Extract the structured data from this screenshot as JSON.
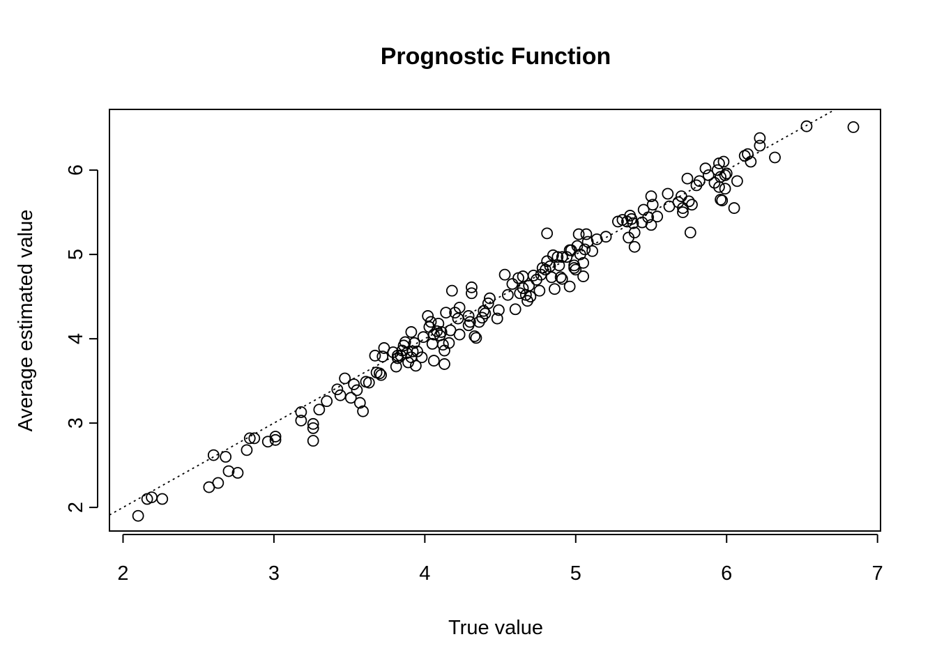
{
  "chart_data": {
    "type": "scatter",
    "title": "Prognostic Function",
    "xlabel": "True value",
    "ylabel": "Average estimated value",
    "xlim": [
      1.91,
      7.02
    ],
    "ylim": [
      1.72,
      6.72
    ],
    "xticks": [
      2,
      3,
      4,
      5,
      6,
      7
    ],
    "yticks": [
      2,
      3,
      4,
      5,
      6
    ],
    "grid": false,
    "reference_line": {
      "style": "dotted",
      "intercept": 0,
      "slope": 1
    },
    "points": [
      [
        2.1,
        1.9
      ],
      [
        2.16,
        2.1
      ],
      [
        2.19,
        2.12
      ],
      [
        2.26,
        2.1
      ],
      [
        2.57,
        2.24
      ],
      [
        2.6,
        2.62
      ],
      [
        2.63,
        2.29
      ],
      [
        2.68,
        2.6
      ],
      [
        2.7,
        2.43
      ],
      [
        2.76,
        2.41
      ],
      [
        2.82,
        2.68
      ],
      [
        2.84,
        2.82
      ],
      [
        2.87,
        2.82
      ],
      [
        2.96,
        2.78
      ],
      [
        3.01,
        2.8
      ],
      [
        3.01,
        2.84
      ],
      [
        3.18,
        3.13
      ],
      [
        3.18,
        3.03
      ],
      [
        3.26,
        2.99
      ],
      [
        3.26,
        2.94
      ],
      [
        3.26,
        2.79
      ],
      [
        3.3,
        3.16
      ],
      [
        3.35,
        3.26
      ],
      [
        3.42,
        3.4
      ],
      [
        3.44,
        3.33
      ],
      [
        3.47,
        3.53
      ],
      [
        3.51,
        3.3
      ],
      [
        3.53,
        3.46
      ],
      [
        3.55,
        3.39
      ],
      [
        3.57,
        3.24
      ],
      [
        3.59,
        3.14
      ],
      [
        3.61,
        3.49
      ],
      [
        3.63,
        3.48
      ],
      [
        3.67,
        3.8
      ],
      [
        3.68,
        3.6
      ],
      [
        3.7,
        3.59
      ],
      [
        3.71,
        3.57
      ],
      [
        3.72,
        3.79
      ],
      [
        3.73,
        3.89
      ],
      [
        3.79,
        3.84
      ],
      [
        3.81,
        3.67
      ],
      [
        3.82,
        3.8
      ],
      [
        3.82,
        3.77
      ],
      [
        3.84,
        3.8
      ],
      [
        3.85,
        3.86
      ],
      [
        3.86,
        3.92
      ],
      [
        3.87,
        3.96
      ],
      [
        3.88,
        3.83
      ],
      [
        3.89,
        3.72
      ],
      [
        3.91,
        3.78
      ],
      [
        3.91,
        4.08
      ],
      [
        3.92,
        3.85
      ],
      [
        3.93,
        3.95
      ],
      [
        3.94,
        3.68
      ],
      [
        3.95,
        3.85
      ],
      [
        3.98,
        3.78
      ],
      [
        3.99,
        4.02
      ],
      [
        4.02,
        4.27
      ],
      [
        4.03,
        4.14
      ],
      [
        4.04,
        4.2
      ],
      [
        4.05,
        3.94
      ],
      [
        4.06,
        3.74
      ],
      [
        4.06,
        4.05
      ],
      [
        4.08,
        4.09
      ],
      [
        4.09,
        4.18
      ],
      [
        4.1,
        4.04
      ],
      [
        4.11,
        4.08
      ],
      [
        4.12,
        3.93
      ],
      [
        4.13,
        3.86
      ],
      [
        4.13,
        3.7
      ],
      [
        4.14,
        4.31
      ],
      [
        4.16,
        3.95
      ],
      [
        4.17,
        4.1
      ],
      [
        4.18,
        4.57
      ],
      [
        4.2,
        4.31
      ],
      [
        4.22,
        4.24
      ],
      [
        4.23,
        4.05
      ],
      [
        4.23,
        4.37
      ],
      [
        4.29,
        4.27
      ],
      [
        4.29,
        4.16
      ],
      [
        4.3,
        4.2
      ],
      [
        4.31,
        4.61
      ],
      [
        4.31,
        4.54
      ],
      [
        4.33,
        4.03
      ],
      [
        4.34,
        4.01
      ],
      [
        4.36,
        4.2
      ],
      [
        4.38,
        4.25
      ],
      [
        4.39,
        4.33
      ],
      [
        4.4,
        4.3
      ],
      [
        4.42,
        4.42
      ],
      [
        4.43,
        4.48
      ],
      [
        4.48,
        4.24
      ],
      [
        4.49,
        4.34
      ],
      [
        4.53,
        4.76
      ],
      [
        4.55,
        4.52
      ],
      [
        4.58,
        4.65
      ],
      [
        4.6,
        4.35
      ],
      [
        4.62,
        4.72
      ],
      [
        4.63,
        4.54
      ],
      [
        4.65,
        4.6
      ],
      [
        4.65,
        4.74
      ],
      [
        4.67,
        4.52
      ],
      [
        4.68,
        4.45
      ],
      [
        4.69,
        4.63
      ],
      [
        4.7,
        4.5
      ],
      [
        4.72,
        4.75
      ],
      [
        4.74,
        4.7
      ],
      [
        4.76,
        4.57
      ],
      [
        4.77,
        4.76
      ],
      [
        4.78,
        4.84
      ],
      [
        4.8,
        4.82
      ],
      [
        4.81,
        5.25
      ],
      [
        4.81,
        4.92
      ],
      [
        4.83,
        4.86
      ],
      [
        4.84,
        4.73
      ],
      [
        4.85,
        4.99
      ],
      [
        4.86,
        4.59
      ],
      [
        4.88,
        4.97
      ],
      [
        4.89,
        4.87
      ],
      [
        4.9,
        4.73
      ],
      [
        4.91,
        4.71
      ],
      [
        4.91,
        4.97
      ],
      [
        4.94,
        4.97
      ],
      [
        4.96,
        4.62
      ],
      [
        4.96,
        5.05
      ],
      [
        4.97,
        5.05
      ],
      [
        4.99,
        4.84
      ],
      [
        4.99,
        4.87
      ],
      [
        5.0,
        4.82
      ],
      [
        5.01,
        5.1
      ],
      [
        5.02,
        5.24
      ],
      [
        5.03,
        5.0
      ],
      [
        5.05,
        4.74
      ],
      [
        5.05,
        4.9
      ],
      [
        5.06,
        5.06
      ],
      [
        5.07,
        5.24
      ],
      [
        5.08,
        5.15
      ],
      [
        5.11,
        5.04
      ],
      [
        5.14,
        5.18
      ],
      [
        5.2,
        5.21
      ],
      [
        5.28,
        5.39
      ],
      [
        5.31,
        5.41
      ],
      [
        5.34,
        5.39
      ],
      [
        5.35,
        5.2
      ],
      [
        5.36,
        5.46
      ],
      [
        5.37,
        5.42
      ],
      [
        5.38,
        5.37
      ],
      [
        5.39,
        5.26
      ],
      [
        5.39,
        5.09
      ],
      [
        5.44,
        5.38
      ],
      [
        5.45,
        5.53
      ],
      [
        5.48,
        5.44
      ],
      [
        5.5,
        5.35
      ],
      [
        5.5,
        5.69
      ],
      [
        5.51,
        5.59
      ],
      [
        5.54,
        5.45
      ],
      [
        5.61,
        5.72
      ],
      [
        5.62,
        5.57
      ],
      [
        5.68,
        5.62
      ],
      [
        5.7,
        5.69
      ],
      [
        5.71,
        5.55
      ],
      [
        5.71,
        5.5
      ],
      [
        5.74,
        5.9
      ],
      [
        5.75,
        5.63
      ],
      [
        5.76,
        5.26
      ],
      [
        5.77,
        5.59
      ],
      [
        5.8,
        5.82
      ],
      [
        5.82,
        5.87
      ],
      [
        5.86,
        6.02
      ],
      [
        5.88,
        5.94
      ],
      [
        5.92,
        5.85
      ],
      [
        5.94,
        6.0
      ],
      [
        5.95,
        6.08
      ],
      [
        5.95,
        5.8
      ],
      [
        5.96,
        5.92
      ],
      [
        5.96,
        5.65
      ],
      [
        5.97,
        5.64
      ],
      [
        5.98,
        6.1
      ],
      [
        5.99,
        5.94
      ],
      [
        5.99,
        5.78
      ],
      [
        6.0,
        5.96
      ],
      [
        6.05,
        5.55
      ],
      [
        6.07,
        5.87
      ],
      [
        6.12,
        6.17
      ],
      [
        6.14,
        6.19
      ],
      [
        6.16,
        6.1
      ],
      [
        6.22,
        6.29
      ],
      [
        6.22,
        6.38
      ],
      [
        6.32,
        6.15
      ],
      [
        6.53,
        6.52
      ],
      [
        6.84,
        6.51
      ]
    ]
  }
}
